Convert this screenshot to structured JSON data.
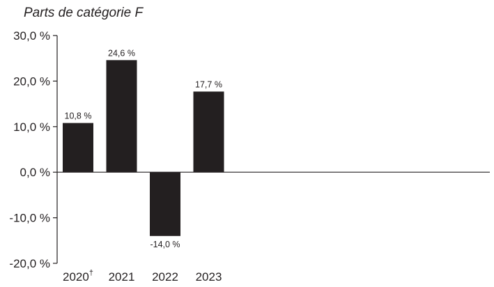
{
  "chart_data": {
    "type": "bar",
    "title": "Parts de catégorie F",
    "categories": [
      {
        "label": "2020",
        "sup": "†"
      },
      {
        "label": "2021",
        "sup": ""
      },
      {
        "label": "2022",
        "sup": ""
      },
      {
        "label": "2023",
        "sup": ""
      }
    ],
    "values": [
      10.8,
      24.6,
      -14.0,
      17.7
    ],
    "data_labels": [
      "10,8 %",
      "24,6 %",
      "-14,0 %",
      "17,7 %"
    ],
    "yticks": [
      30,
      20,
      10,
      0,
      -10,
      -20
    ],
    "ytick_labels": [
      "30,0 %",
      "20,0 %",
      "10,0 %",
      "0,0 %",
      "-10,0 %",
      "-20,0 %"
    ],
    "ylim": [
      -20,
      30
    ],
    "xlabel": "",
    "ylabel": "",
    "grid": false,
    "bar_color": "#231f20",
    "axis_color": "#231f20"
  }
}
